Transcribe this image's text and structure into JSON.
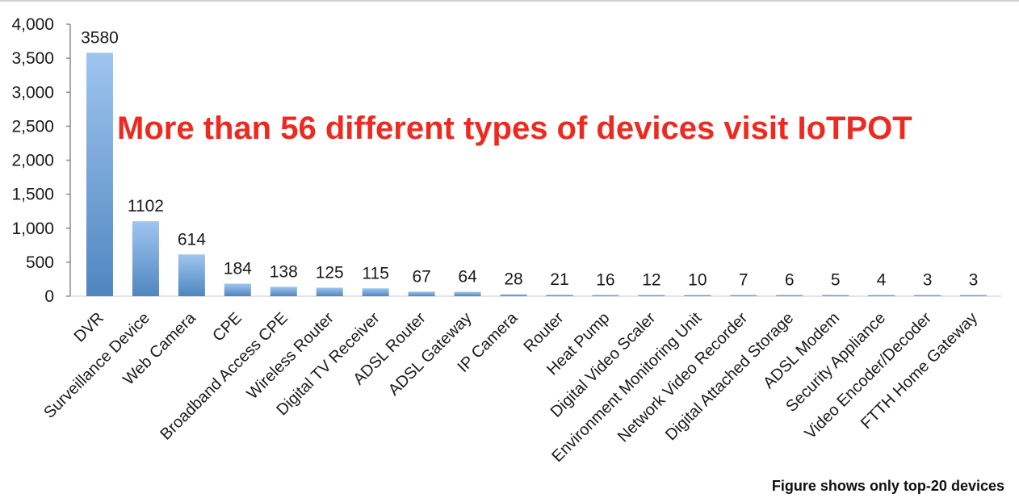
{
  "chart_data": {
    "type": "bar",
    "categories": [
      "DVR",
      "Surveillance Device",
      "Web Camera",
      "CPE",
      "Broadband Access CPE",
      "Wireless Router",
      "Digital TV Receiver",
      "ADSL Router",
      "ADSL Gateway",
      "IP Camera",
      "Router",
      "Heat Pump",
      "Digital Video Scaler",
      "Environment Monitoring Unit",
      "Network Video Recorder",
      "Digital Attached Storage",
      "ADSL Modem",
      "Security Appliance",
      "Video Encoder/Decoder",
      "FTTH Home Gateway"
    ],
    "values": [
      3580,
      1102,
      614,
      184,
      138,
      125,
      115,
      67,
      64,
      28,
      21,
      16,
      12,
      10,
      7,
      6,
      5,
      4,
      3,
      3
    ],
    "value_labels": [
      "3580",
      "1102",
      "614",
      "184",
      "138",
      "125",
      "115",
      "67",
      "64",
      "28",
      "21",
      "16",
      "12",
      "10",
      "7",
      "6",
      "5",
      "4",
      "3",
      "3"
    ],
    "yticks": [
      0,
      500,
      1000,
      1500,
      2000,
      2500,
      3000,
      3500,
      4000
    ],
    "ytick_labels": [
      "0",
      "500",
      "1,000",
      "1,500",
      "2,000",
      "2,500",
      "3,000",
      "3,500",
      "4,000"
    ],
    "ylim": [
      0,
      4000
    ],
    "grid": false,
    "bar_color_top": "#9fc5ef",
    "bar_color_bottom": "#4f86c0",
    "annotation": "More than 56 different types of devices visit IoTPOT",
    "annotation_color": "#ee2a20",
    "footnote": "Figure shows only top-20 devices"
  }
}
